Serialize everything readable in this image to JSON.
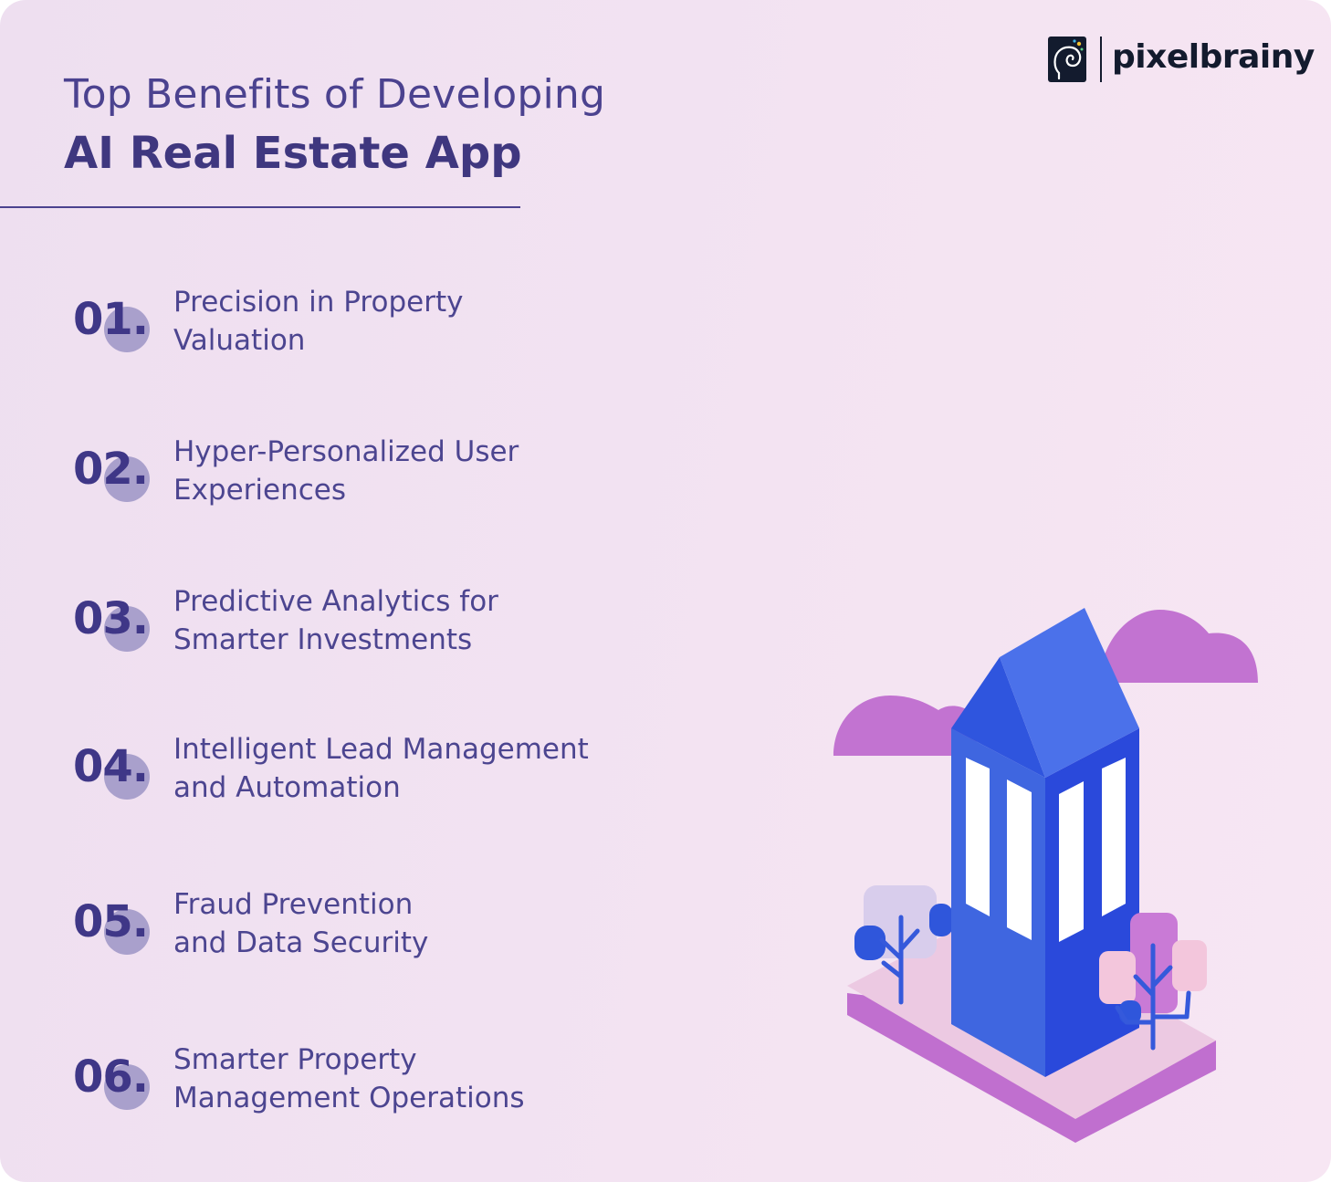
{
  "header": {
    "title_line1": "Top Benefits of Developing",
    "title_line2": "AI Real Estate App"
  },
  "brand": {
    "name": "pixelbrainy",
    "logo_icon": "brain-spiral-icon"
  },
  "benefits": [
    {
      "number": "01.",
      "line1": "Precision in Property",
      "line2": "Valuation"
    },
    {
      "number": "02.",
      "line1": "Hyper-Personalized User",
      "line2": "Experiences"
    },
    {
      "number": "03.",
      "line1": "Predictive Analytics for",
      "line2": "Smarter Investments"
    },
    {
      "number": "04.",
      "line1": "Intelligent Lead Management",
      "line2": "and Automation"
    },
    {
      "number": "05.",
      "line1": "Fraud Prevention",
      "line2": "and Data Security"
    },
    {
      "number": "06.",
      "line1": "Smarter Property",
      "line2": "Management Operations"
    }
  ],
  "illustration": {
    "icon": "building-with-trees-and-clouds-icon",
    "colors": {
      "building_front": "#3f66e0",
      "building_side": "#2a49db",
      "window": "#ffffff",
      "cloud": "#c273d1",
      "platform_top": "#ecc9e2",
      "platform_side": "#c06fcf",
      "tree_trunk": "#3559db",
      "bush_light": "#d8cdec",
      "bush_pink": "#f3c6dc",
      "bush_purple": "#c97ad6"
    }
  }
}
